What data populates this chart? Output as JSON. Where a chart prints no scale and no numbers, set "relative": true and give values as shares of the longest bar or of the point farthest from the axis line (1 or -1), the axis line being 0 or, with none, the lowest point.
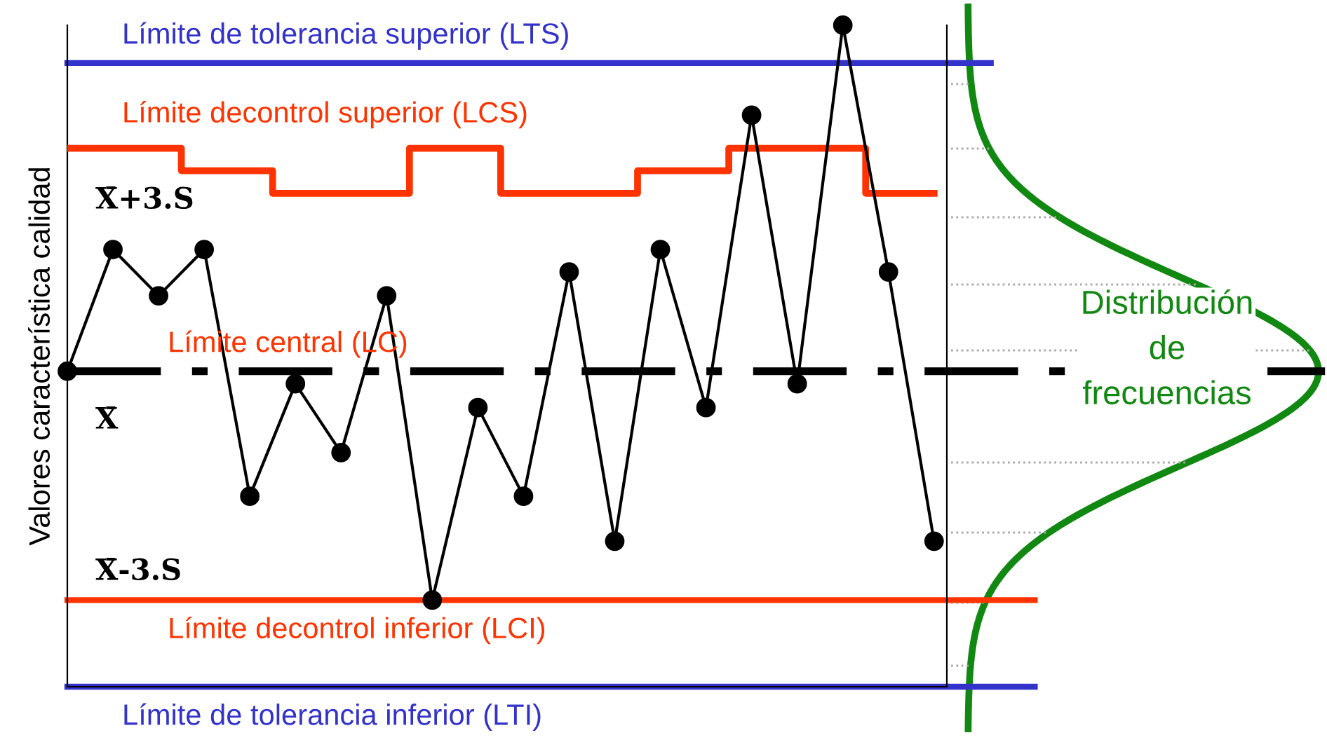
{
  "chart_data": {
    "type": "line",
    "relative": true,
    "ylabel": "Valores característica calidad",
    "categories": [
      null,
      null,
      null,
      null,
      null,
      null,
      null,
      null,
      null,
      null,
      null,
      null,
      null,
      null,
      null,
      null,
      null,
      null,
      null,
      null
    ],
    "series": [
      {
        "color": "#000000",
        "marker": "circle",
        "values": [
          0.477,
          0.661,
          0.591,
          0.661,
          0.288,
          0.458,
          0.354,
          0.591,
          0.131,
          0.422,
          0.288,
          0.627,
          0.22,
          0.661,
          0.422,
          0.864,
          0.458,
          1.0,
          0.627,
          0.22
        ]
      },
      {
        "type": "step",
        "name": "Límite decontrol superior (LCS)",
        "color": "#ff3300",
        "values": [
          0.814,
          0.814,
          0.814,
          0.78,
          0.78,
          0.746,
          0.746,
          0.746,
          0.814,
          0.814,
          0.746,
          0.746,
          0.746,
          0.78,
          0.78,
          0.814,
          0.814,
          0.814,
          0.746,
          0.746
        ]
      }
    ],
    "ref_lines": [
      {
        "axis": "y",
        "value": 0.943,
        "label": "Límite de tolerancia superior (LTS)",
        "color": "#3333cc",
        "line_style": "solid"
      },
      {
        "axis": "y",
        "value": 0.477,
        "label": "Límite central (LC)",
        "color": "#000000",
        "line_style": "dashdot"
      },
      {
        "axis": "y",
        "value": 0.131,
        "label": "Límite decontrol inferior (LCI)",
        "color": "#ff3300",
        "line_style": "solid"
      },
      {
        "axis": "y",
        "value": 0,
        "label": "Límite de tolerancia inferior (LTI)",
        "color": "#3333cc",
        "line_style": "solid"
      }
    ],
    "annotations": [
      "X̄+3.S",
      "X̄",
      "X̄-3.S",
      "Distribución\nde\nfrecuencias"
    ],
    "grid": false,
    "legend": false
  }
}
